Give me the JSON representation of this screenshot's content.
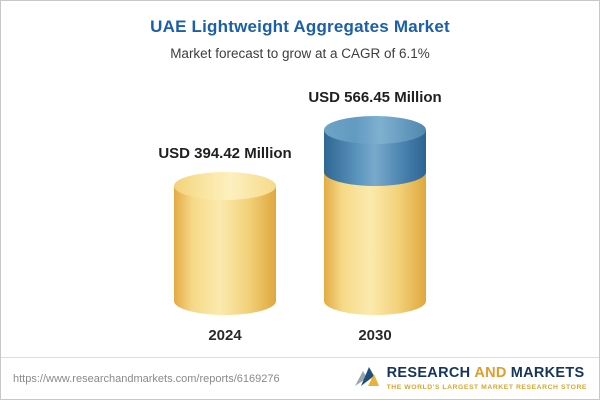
{
  "title": "UAE Lightweight Aggregates Market",
  "subtitle": "Market forecast to grow at a CAGR of 6.1%",
  "chart_data": {
    "type": "bar",
    "subtype": "3d-cylinder",
    "categories": [
      "2024",
      "2030"
    ],
    "values": [
      394.42,
      566.45
    ],
    "value_labels": [
      "USD 394.42 Million",
      "USD 566.45 Million"
    ],
    "unit": "USD Million",
    "cagr": "6.1%",
    "legend_position": "none",
    "grid": false,
    "colors": {
      "bar_yellow": "#f5d87e",
      "bar_blue": "#4a82ad",
      "title_blue": "#1a5fa8"
    }
  },
  "footer": {
    "url": "https://www.researchandmarkets.com/reports/6169276",
    "logo": {
      "part1": "RESEARCH",
      "part2": "AND",
      "part3": "MARKETS",
      "tagline": "THE WORLD'S LARGEST MARKET RESEARCH STORE"
    }
  }
}
